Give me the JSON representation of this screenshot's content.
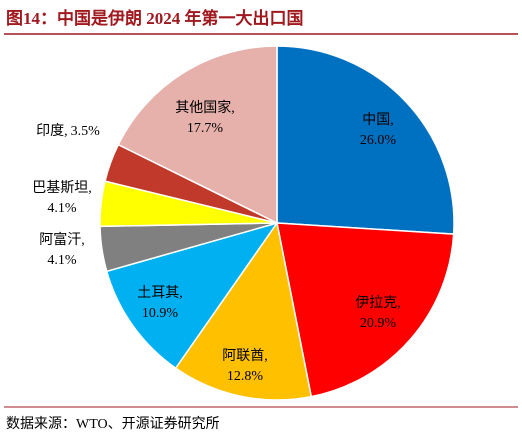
{
  "chart_data": {
    "type": "pie",
    "title": "图14：中国是伊朗 2024 年第一大出口国",
    "source": "数据来源：WTO、开源证券研究所",
    "categories": [
      "中国,",
      "伊拉克,",
      "阿联酋,",
      "土耳其,",
      "阿富汗,",
      "巴基斯坦,",
      "印度,",
      "其他国家,"
    ],
    "values": [
      26.0,
      20.9,
      12.8,
      10.9,
      4.1,
      4.1,
      3.5,
      17.7
    ],
    "value_labels": [
      "26.0%",
      "20.9%",
      "12.8%",
      "10.9%",
      "4.1%",
      "4.1%",
      "3.5%",
      "17.7%"
    ],
    "colors": [
      "#0070C0",
      "#FF0000",
      "#FFC000",
      "#00B0F0",
      "#808080",
      "#FFFF00",
      "#C0392B",
      "#E6B0AB"
    ]
  }
}
